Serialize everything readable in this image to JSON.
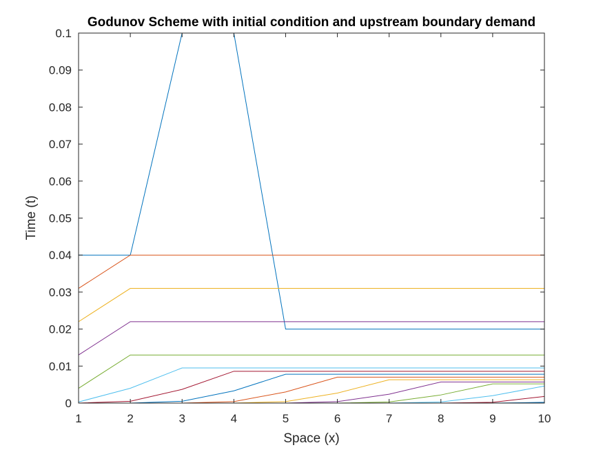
{
  "chart_data": {
    "type": "line",
    "title": "Godunov Scheme with initial condition and upstream boundary demand",
    "xlabel": "Space (x)",
    "ylabel": "Time (t)",
    "xlim": [
      1,
      10
    ],
    "ylim": [
      0,
      0.1
    ],
    "x": [
      1,
      2,
      3,
      4,
      5,
      6,
      7,
      8,
      9,
      10
    ],
    "x_ticks": [
      "1",
      "2",
      "3",
      "4",
      "5",
      "6",
      "7",
      "8",
      "9",
      "10"
    ],
    "y_ticks": [
      "0",
      "0.01",
      "0.02",
      "0.03",
      "0.04",
      "0.05",
      "0.06",
      "0.07",
      "0.08",
      "0.09",
      "0.1"
    ],
    "y_tick_values": [
      0,
      0.01,
      0.02,
      0.03,
      0.04,
      0.05,
      0.06,
      0.07,
      0.08,
      0.09,
      0.1
    ],
    "grid": false,
    "box": true,
    "series": [
      {
        "color": "#0072BD",
        "values": [
          0.04,
          0.04,
          0.1,
          0.1,
          0.02,
          0.02,
          0.02,
          0.02,
          0.02,
          0.02
        ]
      },
      {
        "color": "#D95319",
        "values": [
          0.031,
          0.04,
          0.04,
          0.04,
          0.04,
          0.04,
          0.04,
          0.04,
          0.04,
          0.04
        ]
      },
      {
        "color": "#EDB120",
        "values": [
          0.022,
          0.031,
          0.031,
          0.031,
          0.031,
          0.031,
          0.031,
          0.031,
          0.031,
          0.031
        ]
      },
      {
        "color": "#7E2F8E",
        "values": [
          0.013,
          0.022,
          0.022,
          0.022,
          0.022,
          0.022,
          0.022,
          0.022,
          0.022,
          0.022
        ]
      },
      {
        "color": "#77AC30",
        "values": [
          0.004,
          0.013,
          0.013,
          0.013,
          0.013,
          0.013,
          0.013,
          0.013,
          0.013,
          0.013
        ]
      },
      {
        "color": "#4DBEEE",
        "values": [
          0.0003,
          0.004,
          0.0095,
          0.0095,
          0.0095,
          0.0095,
          0.0095,
          0.0095,
          0.0095,
          0.0095
        ]
      },
      {
        "color": "#A2142F",
        "values": [
          0,
          0.0005,
          0.0037,
          0.0086,
          0.0086,
          0.0086,
          0.0086,
          0.0086,
          0.0086,
          0.0086
        ]
      },
      {
        "color": "#0072BD",
        "values": [
          0,
          0,
          0.0005,
          0.0033,
          0.0078,
          0.0078,
          0.0078,
          0.0078,
          0.0078,
          0.0078
        ]
      },
      {
        "color": "#D95319",
        "values": [
          0,
          0,
          0,
          0.0004,
          0.003,
          0.007,
          0.007,
          0.007,
          0.007,
          0.007
        ]
      },
      {
        "color": "#EDB120",
        "values": [
          0,
          0,
          0,
          0,
          0.0004,
          0.0027,
          0.0063,
          0.0063,
          0.0063,
          0.0063
        ]
      },
      {
        "color": "#7E2F8E",
        "values": [
          0,
          0,
          0,
          0,
          0,
          0.0004,
          0.0024,
          0.0057,
          0.0057,
          0.0057
        ]
      },
      {
        "color": "#77AC30",
        "values": [
          0,
          0,
          0,
          0,
          0,
          0,
          0.0003,
          0.0022,
          0.0052,
          0.0052
        ]
      },
      {
        "color": "#4DBEEE",
        "values": [
          0,
          0,
          0,
          0,
          0,
          0,
          0,
          0.0003,
          0.002,
          0.0046
        ]
      },
      {
        "color": "#A2142F",
        "values": [
          0,
          0,
          0,
          0,
          0,
          0,
          0,
          0,
          0.0002,
          0.0018
        ]
      },
      {
        "color": "#0072BD",
        "values": [
          0,
          0,
          0,
          0,
          0,
          0,
          0,
          0,
          0,
          0.0002
        ]
      }
    ]
  }
}
